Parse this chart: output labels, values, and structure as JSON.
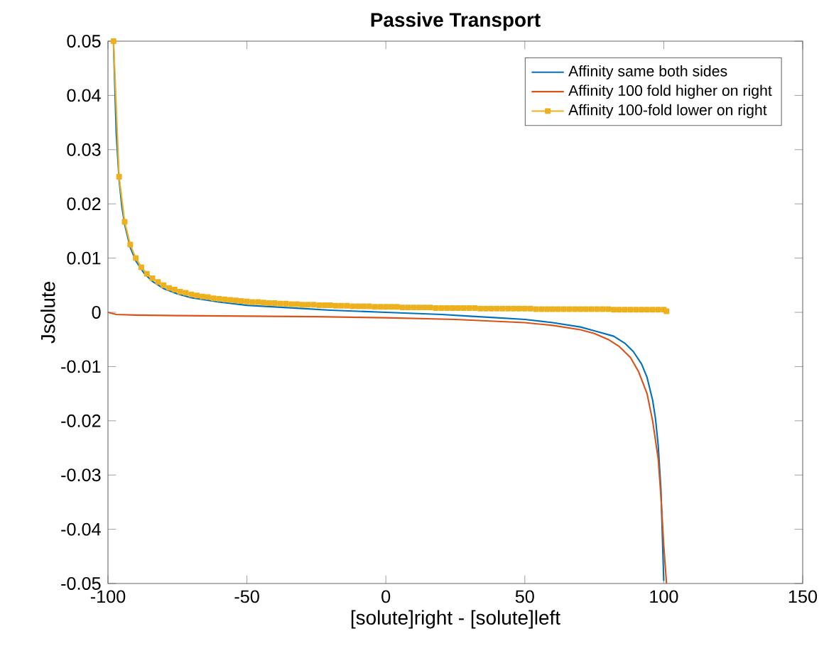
{
  "chart_data": {
    "type": "line",
    "title": "Passive Transport",
    "xlabel": "[solute]right - [solute]left",
    "ylabel": "Jsolute",
    "xlim": [
      -100,
      150
    ],
    "xticks": [
      -100,
      -50,
      0,
      50,
      100,
      150
    ],
    "ylim": [
      -0.05,
      0.05
    ],
    "yticks": [
      -0.05,
      -0.04,
      -0.03,
      -0.02,
      -0.01,
      0,
      0.01,
      0.02,
      0.03,
      0.04,
      0.05
    ],
    "legend": "top right",
    "grid": false,
    "marker": "none",
    "line_style": "solid",
    "series": [
      {
        "name": "Affinity same both sides",
        "color": "#0072bd",
        "x": [
          -98,
          -97,
          -96,
          -95,
          -94,
          -92,
          -90,
          -87,
          -84,
          -80,
          -75,
          -70,
          -60,
          -50,
          -40,
          -30,
          -20,
          -10,
          0,
          10,
          20,
          30,
          40,
          50,
          60,
          70,
          75,
          82,
          86,
          89,
          92,
          94,
          96,
          97,
          98,
          99,
          100
        ],
        "values": [
          0.0495,
          0.0328,
          0.0245,
          0.0195,
          0.0162,
          0.012,
          0.0095,
          0.0072,
          0.0057,
          0.0044,
          0.0034,
          0.0027,
          0.0019,
          0.0013,
          0.001,
          0.0007,
          0.0004,
          0.0002,
          0,
          -0.0002,
          -0.0004,
          -0.0007,
          -0.001,
          -0.0013,
          -0.0019,
          -0.0027,
          -0.0034,
          -0.0044,
          -0.0057,
          -0.0072,
          -0.0095,
          -0.012,
          -0.0162,
          -0.0195,
          -0.0245,
          -0.0328,
          -0.0495
        ]
      },
      {
        "name": "Affinity 100 fold higher on right",
        "color": "#d95319",
        "x": [
          -100,
          -97,
          -90,
          -75,
          -50,
          -25,
          0,
          25,
          50,
          60,
          70,
          75,
          80,
          84,
          88,
          91,
          94,
          96,
          98,
          99,
          100,
          101
        ],
        "values": [
          0,
          -0.0004,
          -0.0005,
          -0.0006,
          -0.0007,
          -0.0008,
          -0.001,
          -0.0013,
          -0.0019,
          -0.0024,
          -0.0032,
          -0.0039,
          -0.005,
          -0.0063,
          -0.0083,
          -0.011,
          -0.015,
          -0.02,
          -0.027,
          -0.034,
          -0.043,
          -0.05
        ]
      },
      {
        "name": "Affinity 100-fold lower on right",
        "color": "#edb120",
        "marker": "square",
        "x": [
          -98,
          -96,
          -94,
          -92,
          -90,
          -88,
          -86,
          -84,
          -82,
          -80,
          -78,
          -76,
          -74,
          -72,
          -70,
          -68,
          -66,
          -64,
          -62,
          -60,
          -58,
          -56,
          -54,
          -52,
          -50,
          -48,
          -46,
          -44,
          -42,
          -40,
          -38,
          -36,
          -34,
          -32,
          -30,
          -28,
          -26,
          -24,
          -22,
          -20,
          -18,
          -16,
          -14,
          -12,
          -10,
          -8,
          -6,
          -4,
          -2,
          0,
          2,
          4,
          6,
          8,
          10,
          12,
          14,
          16,
          18,
          20,
          22,
          24,
          26,
          28,
          30,
          32,
          34,
          36,
          38,
          40,
          42,
          44,
          46,
          48,
          50,
          52,
          54,
          56,
          58,
          60,
          62,
          64,
          66,
          68,
          70,
          72,
          74,
          76,
          78,
          80,
          82,
          84,
          86,
          88,
          90,
          92,
          94,
          96,
          98,
          100,
          101
        ],
        "values": [
          0.05,
          0.025,
          0.0167,
          0.0125,
          0.01,
          0.0083,
          0.0071,
          0.0063,
          0.0056,
          0.005,
          0.0045,
          0.0042,
          0.0038,
          0.0036,
          0.0033,
          0.0031,
          0.0029,
          0.0028,
          0.0026,
          0.0025,
          0.0024,
          0.0023,
          0.0022,
          0.0021,
          0.002,
          0.0019,
          0.0019,
          0.0018,
          0.0017,
          0.0017,
          0.0016,
          0.0016,
          0.0015,
          0.0015,
          0.0014,
          0.0014,
          0.0014,
          0.0013,
          0.0013,
          0.0013,
          0.0012,
          0.0012,
          0.0012,
          0.0011,
          0.0011,
          0.0011,
          0.0011,
          0.001,
          0.001,
          0.001,
          0.001,
          0.001,
          0.0009,
          0.0009,
          0.0009,
          0.0009,
          0.0009,
          0.0009,
          0.0008,
          0.0008,
          0.0008,
          0.0008,
          0.0008,
          0.0008,
          0.0008,
          0.0008,
          0.0007,
          0.0007,
          0.0007,
          0.0007,
          0.0007,
          0.0007,
          0.0007,
          0.0007,
          0.0007,
          0.0007,
          0.0006,
          0.0006,
          0.0006,
          0.0006,
          0.0006,
          0.0006,
          0.0006,
          0.0006,
          0.0006,
          0.0006,
          0.0006,
          0.0006,
          0.0006,
          0.0006,
          0.0005,
          0.0005,
          0.0005,
          0.0005,
          0.0005,
          0.0005,
          0.0005,
          0.0005,
          0.0005,
          0.0005,
          0.0002
        ]
      }
    ]
  }
}
